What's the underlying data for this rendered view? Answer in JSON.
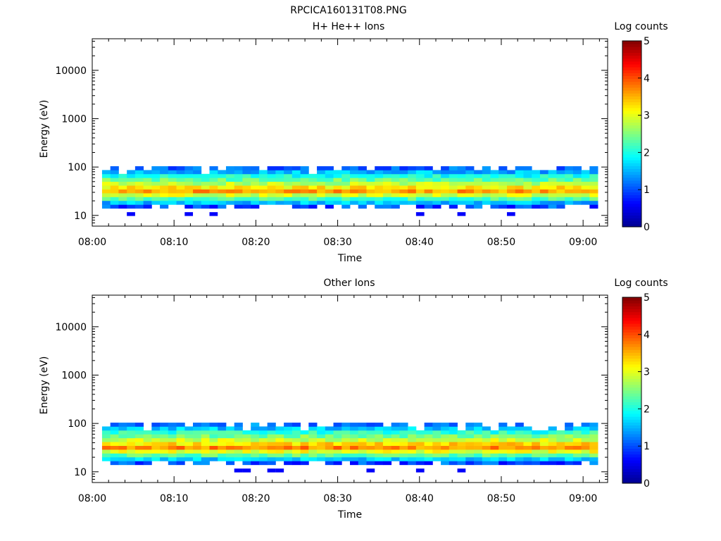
{
  "figure_title": "RPCICA160131T08.PNG",
  "colors": {
    "colormap": [
      "#00008f",
      "#0000ff",
      "#0080ff",
      "#00ffff",
      "#80ff80",
      "#ffff00",
      "#ff8000",
      "#ff0000",
      "#800000"
    ],
    "background": "#ffffff",
    "axis": "#000000"
  },
  "chart_data": [
    {
      "type": "heatmap",
      "title": "H+ He++ Ions",
      "xlabel": "Time",
      "ylabel": "Energy (eV)",
      "x_ticks": [
        "08:00",
        "08:10",
        "08:20",
        "08:30",
        "08:40",
        "08:50",
        "09:00"
      ],
      "xlim_minutes": [
        0,
        63
      ],
      "y_ticks": [
        "10",
        "100",
        "1000",
        "10000"
      ],
      "ylim": [
        6,
        45000
      ],
      "y_scale": "log",
      "colorbar": {
        "label": "Log counts",
        "ticks": [
          "0",
          "1",
          "2",
          "3",
          "4",
          "5"
        ],
        "range": [
          0,
          5
        ]
      },
      "data_start_minute": 1.2,
      "bin_minutes": 1.01,
      "energy_bins_eV": [
        14,
        16.8,
        20.2,
        24.2,
        29,
        34.8,
        41.8,
        50.2,
        60.2,
        72.2,
        86.7
      ],
      "band_peak_log_counts": 3.6,
      "band_edges_eV": [
        14,
        95
      ]
    },
    {
      "type": "heatmap",
      "title": "Other Ions",
      "xlabel": "Time",
      "ylabel": "Energy (eV)",
      "x_ticks": [
        "08:00",
        "08:10",
        "08:20",
        "08:30",
        "08:40",
        "08:50",
        "09:00"
      ],
      "xlim_minutes": [
        0,
        63
      ],
      "y_ticks": [
        "10",
        "100",
        "1000",
        "10000"
      ],
      "ylim": [
        6,
        45000
      ],
      "y_scale": "log",
      "colorbar": {
        "label": "Log counts",
        "ticks": [
          "0",
          "1",
          "2",
          "3",
          "4",
          "5"
        ],
        "range": [
          0,
          5
        ]
      },
      "data_start_minute": 1.2,
      "bin_minutes": 1.01,
      "energy_bins_eV": [
        14,
        16.8,
        20.2,
        24.2,
        29,
        34.8,
        41.8,
        50.2,
        60.2,
        72.2,
        86.7
      ],
      "band_peak_log_counts": 3.7,
      "band_edges_eV": [
        10,
        95
      ]
    }
  ]
}
